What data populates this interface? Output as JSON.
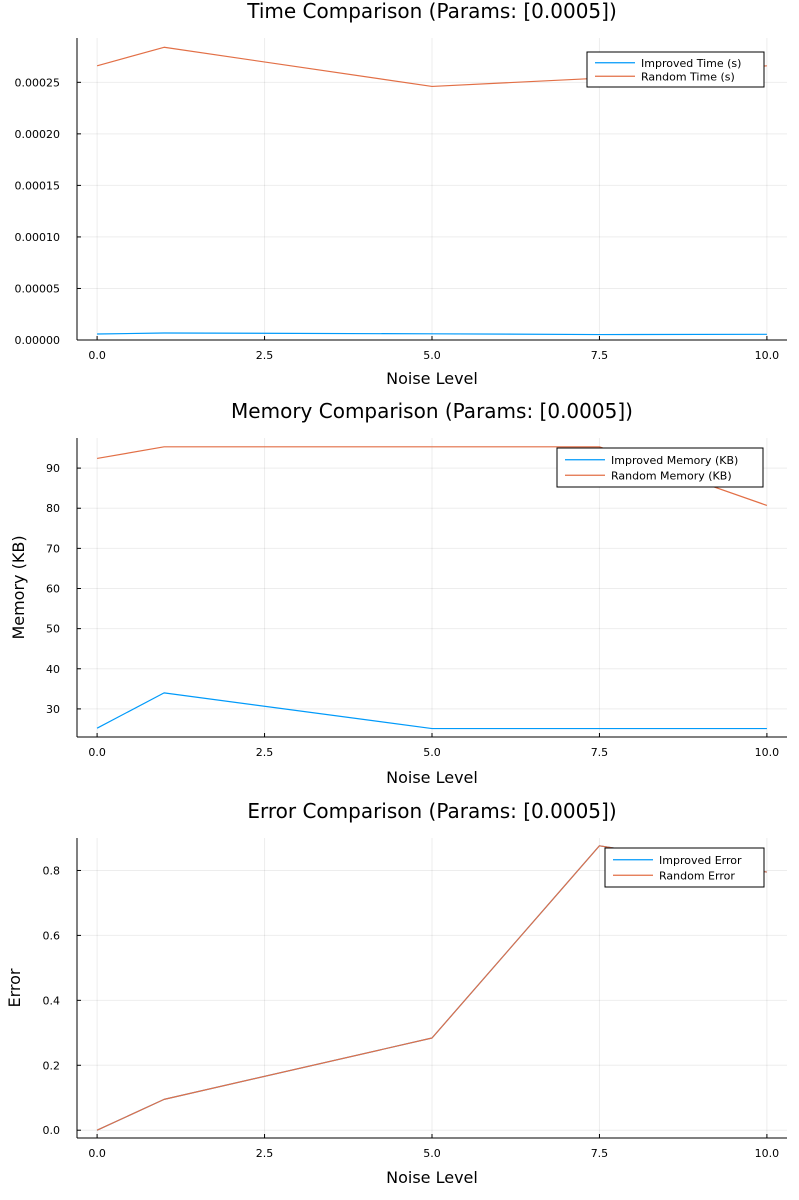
{
  "chart_data": [
    {
      "type": "line",
      "title": "Time Comparison (Params: [0.0005])",
      "xlabel": "Noise Level",
      "ylabel": "",
      "xlim": [
        -0.3,
        10.3
      ],
      "ylim": [
        0.0,
        0.000293
      ],
      "xticks": [
        0.0,
        2.5,
        5.0,
        7.5,
        10.0
      ],
      "xtick_labels": [
        "0.0",
        "2.5",
        "5.0",
        "7.5",
        "10.0"
      ],
      "yticks": [
        0.0,
        5e-05,
        0.0001,
        0.00015,
        0.0002,
        0.00025
      ],
      "ytick_labels": [
        "0.00000",
        "0.00005",
        "0.00010",
        "0.00015",
        "0.00020",
        "0.00025"
      ],
      "grid": true,
      "legend": "top-right",
      "x": [
        0,
        1,
        5,
        7.5,
        10
      ],
      "series": [
        {
          "name": "Improved Time (s)",
          "color": "#009AFA",
          "values": [
            5.8e-06,
            6.8e-06,
            6e-06,
            5.3e-06,
            5.5e-06
          ]
        },
        {
          "name": "Random Time (s)",
          "color": "#E26F46",
          "values": [
            0.000266,
            0.000284,
            0.000246,
            0.000254,
            0.000266
          ]
        }
      ]
    },
    {
      "type": "line",
      "title": "Memory Comparison (Params: [0.0005])",
      "xlabel": "Noise Level",
      "ylabel": "Memory (KB)",
      "xlim": [
        -0.3,
        10.3
      ],
      "ylim": [
        23.0,
        97.5
      ],
      "xticks": [
        0.0,
        2.5,
        5.0,
        7.5,
        10.0
      ],
      "xtick_labels": [
        "0.0",
        "2.5",
        "5.0",
        "7.5",
        "10.0"
      ],
      "yticks": [
        30,
        40,
        50,
        60,
        70,
        80,
        90
      ],
      "ytick_labels": [
        "30",
        "40",
        "50",
        "60",
        "70",
        "80",
        "90"
      ],
      "grid": true,
      "legend": "top-right",
      "x": [
        0,
        1,
        5,
        7.5,
        10
      ],
      "series": [
        {
          "name": "Improved Memory (KB)",
          "color": "#009AFA",
          "values": [
            25.2,
            34.0,
            25.1,
            25.1,
            25.1
          ]
        },
        {
          "name": "Random Memory (KB)",
          "color": "#E26F46",
          "values": [
            92.4,
            95.3,
            95.3,
            95.3,
            80.7
          ]
        }
      ]
    },
    {
      "type": "line",
      "title": "Error Comparison (Params: [0.0005])",
      "xlabel": "Noise Level",
      "ylabel": "Error",
      "xlim": [
        -0.3,
        10.3
      ],
      "ylim": [
        -0.024,
        0.9
      ],
      "xticks": [
        0.0,
        2.5,
        5.0,
        7.5,
        10.0
      ],
      "xtick_labels": [
        "0.0",
        "2.5",
        "5.0",
        "7.5",
        "10.0"
      ],
      "yticks": [
        0.0,
        0.2,
        0.4,
        0.6,
        0.8
      ],
      "ytick_labels": [
        "0.0",
        "0.2",
        "0.4",
        "0.6",
        "0.8"
      ],
      "grid": true,
      "legend": "top-right",
      "x": [
        0,
        1,
        5,
        7.5,
        10
      ],
      "series": [
        {
          "name": "Improved Error",
          "color": "#009AFA",
          "values": [
            0.0,
            0.095,
            0.284,
            0.876,
            0.795
          ]
        },
        {
          "name": "Random Error",
          "color": "#E26F46",
          "values": [
            0.0,
            0.095,
            0.284,
            0.876,
            0.795
          ]
        }
      ]
    }
  ]
}
